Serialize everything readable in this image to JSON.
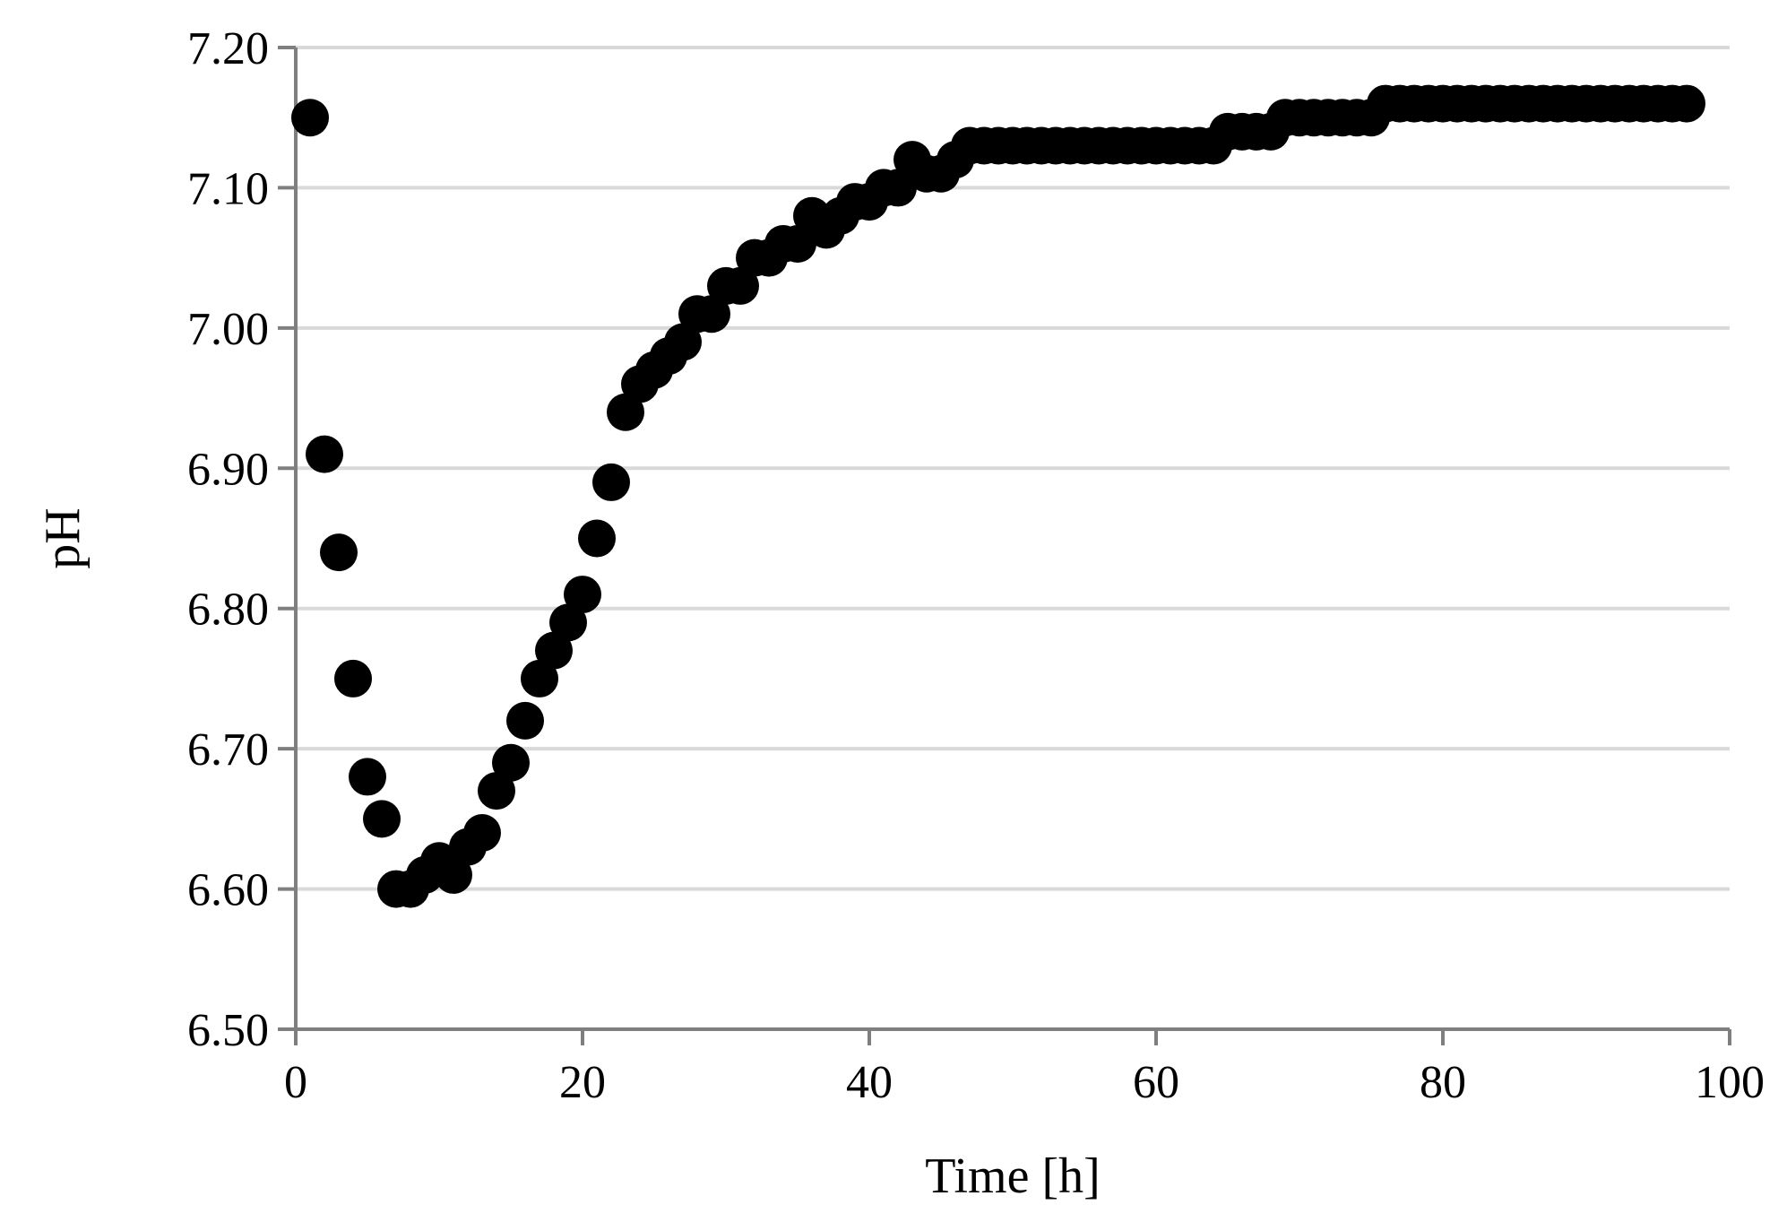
{
  "chart_data": {
    "type": "scatter",
    "title": "",
    "xlabel": "Time [h]",
    "ylabel": "pH",
    "xlim": [
      0,
      100
    ],
    "ylim": [
      6.5,
      7.2
    ],
    "xticks": [
      0,
      20,
      40,
      60,
      80,
      100
    ],
    "yticks": [
      6.5,
      6.6,
      6.7,
      6.8,
      6.9,
      7.0,
      7.1,
      7.2
    ],
    "ytick_labels": [
      "6.50",
      "6.60",
      "6.70",
      "6.80",
      "6.90",
      "7.00",
      "7.10",
      "7.20"
    ],
    "grid": "horizontal",
    "legend": "none",
    "marker_color": "#000000",
    "series": [
      {
        "x": [
          1,
          2,
          3,
          4,
          5,
          6,
          7,
          8,
          9,
          10,
          11,
          12,
          13,
          14,
          15,
          16,
          17,
          18,
          19,
          20,
          21,
          22,
          23,
          24,
          25,
          26,
          27,
          28,
          29,
          30,
          31,
          32,
          33,
          34,
          35,
          36,
          37,
          38,
          39,
          40,
          41,
          42,
          43,
          44,
          45,
          46,
          47,
          48,
          49,
          50,
          51,
          52,
          53,
          54,
          55,
          56,
          57,
          58,
          59,
          60,
          61,
          62,
          63,
          64,
          65,
          66,
          67,
          68,
          69,
          70,
          71,
          72,
          73,
          74,
          75,
          76,
          77,
          78,
          79,
          80,
          81,
          82,
          83,
          84,
          85,
          86,
          87,
          88,
          89,
          90,
          91,
          92,
          93,
          94,
          95,
          96,
          97
        ],
        "y": [
          7.15,
          6.91,
          6.84,
          6.75,
          6.68,
          6.65,
          6.6,
          6.6,
          6.61,
          6.62,
          6.61,
          6.63,
          6.64,
          6.67,
          6.69,
          6.72,
          6.75,
          6.77,
          6.79,
          6.81,
          6.85,
          6.89,
          6.94,
          6.96,
          6.97,
          6.98,
          6.99,
          7.01,
          7.01,
          7.03,
          7.03,
          7.05,
          7.05,
          7.06,
          7.06,
          7.08,
          7.07,
          7.08,
          7.09,
          7.09,
          7.1,
          7.1,
          7.12,
          7.11,
          7.11,
          7.12,
          7.13,
          7.13,
          7.13,
          7.13,
          7.13,
          7.13,
          7.13,
          7.13,
          7.13,
          7.13,
          7.13,
          7.13,
          7.13,
          7.13,
          7.13,
          7.13,
          7.13,
          7.13,
          7.14,
          7.14,
          7.14,
          7.14,
          7.15,
          7.15,
          7.15,
          7.15,
          7.15,
          7.15,
          7.15,
          7.16,
          7.16,
          7.16,
          7.16,
          7.16,
          7.16,
          7.16,
          7.16,
          7.16,
          7.16,
          7.16,
          7.16,
          7.16,
          7.16,
          7.16,
          7.16,
          7.16,
          7.16,
          7.16,
          7.16,
          7.16,
          7.16
        ]
      }
    ]
  }
}
